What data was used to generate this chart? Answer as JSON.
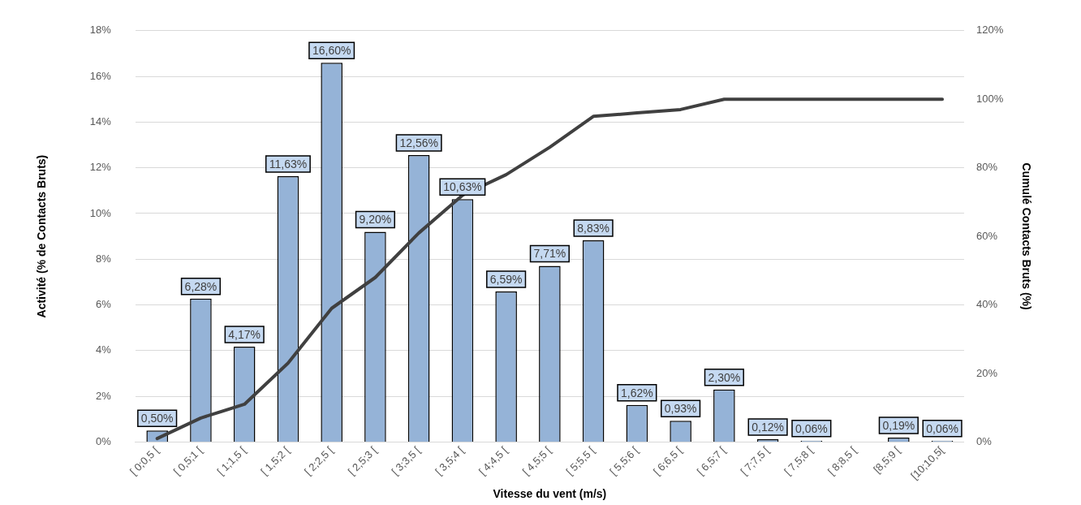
{
  "chart_data": {
    "type": "bar",
    "xlabel": "Vitesse du vent (m/s)",
    "ylabel": "Activité (% de Contacts Bruts)",
    "y2label": "Cumulé Contacts Bruts (%)",
    "categories": [
      "[ 0;0,5 [",
      "[ 0,5;1 [",
      "[ 1;1,5 [",
      "[ 1,5;2 [",
      "[ 2;2,5 [",
      "[ 2,5;3 [",
      "[ 3;3,5 [",
      "[ 3,5;4 [",
      "[ 4;4,5 [",
      "[ 4,5;5 [",
      "[ 5;5,5 [",
      "[ 5,5;6 [",
      "[ 6;6,5 [",
      "[ 6,5;7 [",
      "[ 7;7,5 [",
      "[ 7,5;8 [",
      "[ 8;8,5 [",
      "[8,5;9 [",
      "[10;10,5["
    ],
    "series": [
      {
        "color": "#95b3d7",
        "values": [
          0.5,
          6.28,
          4.17,
          11.63,
          16.6,
          9.2,
          12.56,
          10.63,
          6.59,
          7.71,
          8.83,
          1.62,
          0.93,
          2.3,
          0.12,
          0.06,
          null,
          0.19,
          0.06
        ],
        "value_labels": [
          "0,50%",
          "6,28%",
          "4,17%",
          "11,63%",
          "16,60%",
          "9,20%",
          "12,56%",
          "10,63%",
          "6,59%",
          "7,71%",
          "8,83%",
          "1,62%",
          "0,93%",
          "2,30%",
          "0,12%",
          "0,06%",
          null,
          "0,19%",
          "0,06%"
        ]
      },
      {
        "type": "line",
        "axis": "y2",
        "color": "#404040",
        "values": [
          1,
          7,
          11,
          23,
          39,
          48,
          61,
          72,
          78,
          86,
          95,
          96,
          97,
          100,
          100,
          100,
          100,
          100,
          100
        ]
      }
    ],
    "ylim": [
      0,
      18
    ],
    "yticks": [
      {
        "value": 0,
        "label": "0%"
      },
      {
        "value": 2,
        "label": "2%"
      },
      {
        "value": 4,
        "label": "4%"
      },
      {
        "value": 6,
        "label": "6%"
      },
      {
        "value": 8,
        "label": "8%"
      },
      {
        "value": 10,
        "label": "10%"
      },
      {
        "value": 12,
        "label": "12%"
      },
      {
        "value": 14,
        "label": "14%"
      },
      {
        "value": 16,
        "label": "16%"
      },
      {
        "value": 18,
        "label": "18%"
      }
    ],
    "y2lim": [
      0,
      120
    ],
    "y2ticks": [
      {
        "value": 0,
        "label": "0%"
      },
      {
        "value": 20,
        "label": "20%"
      },
      {
        "value": 40,
        "label": "40%"
      },
      {
        "value": 60,
        "label": "60%"
      },
      {
        "value": 80,
        "label": "80%"
      },
      {
        "value": 100,
        "label": "100%"
      },
      {
        "value": 120,
        "label": "120%"
      }
    ],
    "grid": "y",
    "legend": false,
    "marker": "none"
  }
}
